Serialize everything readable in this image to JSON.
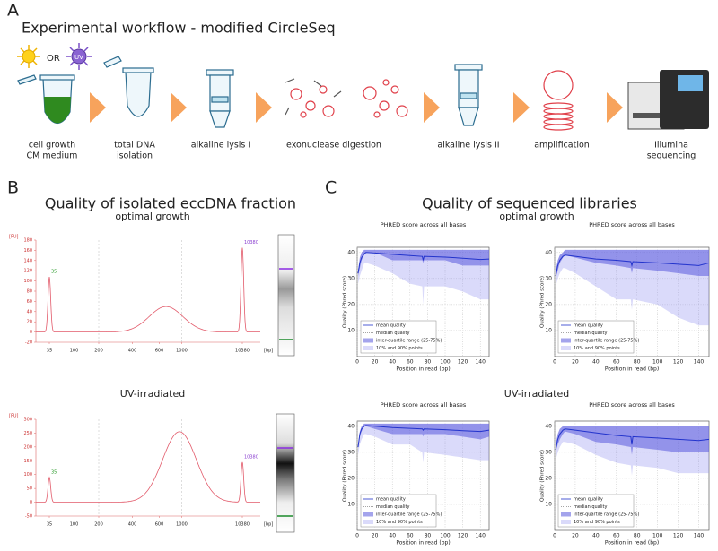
{
  "panel_labels": [
    "A",
    "B",
    "C"
  ],
  "workflow": {
    "title": "Experimental workflow - modified CircleSeq",
    "or_label": "OR",
    "uv_label": "UV",
    "steps": [
      [
        "cell growth",
        "CM medium"
      ],
      [
        "total DNA",
        "isolation"
      ],
      [
        "alkaline lysis I"
      ],
      [
        "exonuclease digestion"
      ],
      [
        "alkaline lysis II"
      ],
      [
        "amplification"
      ],
      [
        "Illumina",
        "sequencing"
      ]
    ]
  },
  "panel_b": {
    "title": "Quality of isolated eccDNA fraction",
    "traces": [
      {
        "condition": "optimal growth",
        "y_unit": "[FU]",
        "x_unit": "[bp]",
        "ylim": [
          -20,
          180
        ],
        "yticks": [
          -20,
          0,
          20,
          40,
          60,
          80,
          100,
          120,
          140,
          160,
          180
        ],
        "xticks": [
          35,
          100,
          200,
          400,
          600,
          1000,
          10380
        ],
        "peaks": [
          {
            "bp": 35,
            "fu": 108
          },
          {
            "bp": 10380,
            "fu": 165
          }
        ],
        "smear": {
          "bp": 700,
          "fu": 50
        }
      },
      {
        "condition": "UV-irradiated",
        "y_unit": "[FU]",
        "x_unit": "[bp]",
        "ylim": [
          -50,
          300
        ],
        "yticks": [
          -50,
          0,
          50,
          100,
          150,
          200,
          250,
          300
        ],
        "xticks": [
          35,
          100,
          200,
          400,
          600,
          1000,
          10380
        ],
        "peaks": [
          {
            "bp": 35,
            "fu": 90
          },
          {
            "bp": 10380,
            "fu": 145
          }
        ],
        "smear": {
          "bp": 950,
          "fu": 255
        }
      }
    ]
  },
  "panel_c": {
    "title": "Quality of sequenced libraries",
    "plot_title": "PHRED score across all bases",
    "x_label": "Position in read (bp)",
    "y_label": "Quality (Phred score)",
    "legend": [
      "mean quality",
      "median quality",
      "inter-quartile range (25-75%)",
      "10% and 90% points"
    ],
    "xlim": [
      0,
      150
    ],
    "ylim": [
      0,
      42
    ],
    "xticks": [
      0,
      20,
      40,
      60,
      80,
      100,
      120,
      140
    ],
    "yticks": [
      10,
      20,
      30,
      40
    ],
    "x": [
      1,
      3,
      5,
      8,
      10,
      20,
      40,
      60,
      74,
      75,
      76,
      100,
      120,
      140,
      150
    ],
    "groups": [
      {
        "condition": "optimal growth",
        "plots": [
          {
            "mean": [
              32,
              36,
              38,
              39.5,
              40,
              39.8,
              39.3,
              38.8,
              38.5,
              37,
              38.5,
              38.2,
              37.8,
              37.3,
              37.5
            ],
            "iqr_high": [
              33,
              38,
              40,
              41,
              41,
              41,
              41,
              41,
              41,
              41,
              41,
              41,
              41,
              41,
              41
            ],
            "iqr_low": [
              31,
              34,
              37,
              39,
              40,
              40,
              37,
              37,
              37,
              36,
              37,
              37,
              35,
              35,
              35
            ],
            "p10_low": [
              28,
              31,
              33,
              36,
              36,
              35,
              32,
              28,
              27,
              20,
              27,
              27,
              25,
              22,
              22
            ]
          },
          {
            "mean": [
              31,
              35,
              37,
              38.5,
              39,
              38.5,
              37.5,
              37,
              36.5,
              35,
              36.5,
              36,
              35.5,
              35,
              36
            ],
            "iqr_high": [
              33,
              37,
              39,
              40,
              41,
              41,
              41,
              41,
              41,
              41,
              41,
              41,
              41,
              41,
              41
            ],
            "iqr_low": [
              30,
              33,
              36,
              38,
              39,
              38,
              36,
              35,
              34,
              32,
              34,
              33,
              32,
              31,
              31
            ],
            "p10_low": [
              27,
              30,
              32,
              34,
              34,
              32,
              27,
              22,
              22,
              18,
              22,
              20,
              15,
              12,
              12
            ]
          }
        ]
      },
      {
        "condition": "UV-irradiated",
        "plots": [
          {
            "mean": [
              32,
              37,
              39,
              40,
              40.3,
              40,
              39.5,
              39.2,
              39,
              38.5,
              39,
              38.7,
              38.3,
              38,
              38.5
            ],
            "iqr_high": [
              33,
              38,
              40,
              41,
              41,
              41,
              41,
              41,
              41,
              41,
              41,
              41,
              41,
              41,
              41
            ],
            "iqr_low": [
              32,
              36,
              38,
              40,
              40,
              39,
              37,
              37,
              37,
              36,
              37,
              37,
              36,
              35,
              36
            ],
            "p10_low": [
              29,
              33,
              35,
              37,
              37,
              36,
              33,
              33,
              30,
              26,
              30,
              29,
              28,
              27,
              27
            ]
          },
          {
            "mean": [
              31,
              35,
              37,
              38.5,
              39,
              38.5,
              37.5,
              36.5,
              36,
              33,
              36,
              35.5,
              35,
              34.5,
              35
            ],
            "iqr_high": [
              33,
              37,
              39,
              40,
              40,
              40,
              40,
              40,
              40,
              40,
              40,
              40,
              40,
              40,
              40
            ],
            "iqr_low": [
              30,
              33,
              35,
              37,
              38,
              37,
              34,
              33,
              32,
              29,
              32,
              31,
              30,
              30,
              30
            ],
            "p10_low": [
              27,
              30,
              32,
              34,
              34,
              33,
              29,
              26,
              25,
              21,
              25,
              24,
              22,
              22,
              22
            ]
          }
        ]
      }
    ]
  }
}
